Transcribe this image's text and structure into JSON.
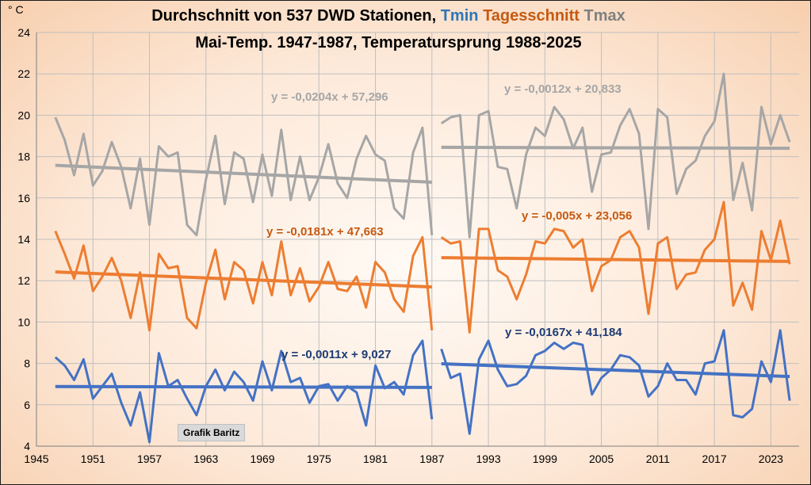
{
  "chart_data": {
    "type": "line",
    "title_parts": [
      {
        "text": "Durchschnitt von 537 DWD Stationen, ",
        "color": "#000000"
      },
      {
        "text": "Tmin ",
        "color": "#2e75b6"
      },
      {
        "text": "Tagesschnitt ",
        "color": "#c55a11"
      },
      {
        "text": "Tmax",
        "color": "#808080"
      }
    ],
    "subtitle": "Mai-Temp. 1947-1987, Temperatursprung 1988-2025",
    "ylabel": "° C",
    "xlim": [
      1945,
      2026
    ],
    "ylim": [
      4,
      24
    ],
    "xticks": [
      1945,
      1951,
      1957,
      1963,
      1969,
      1975,
      1981,
      1987,
      1993,
      1999,
      2005,
      2011,
      2017,
      2023
    ],
    "yticks": [
      4,
      6,
      8,
      10,
      12,
      14,
      16,
      18,
      20,
      22,
      24
    ],
    "grid": true,
    "series": [
      {
        "name": "Tmax",
        "color": "#a6a6a6",
        "segments": [
          {
            "x": [
              1947,
              1948,
              1949,
              1950,
              1951,
              1952,
              1953,
              1954,
              1955,
              1956,
              1957,
              1958,
              1959,
              1960,
              1961,
              1962,
              1963,
              1964,
              1965,
              1966,
              1967,
              1968,
              1969,
              1970,
              1971,
              1972,
              1973,
              1974,
              1975,
              1976,
              1977,
              1978,
              1979,
              1980,
              1981,
              1982,
              1983,
              1984,
              1985,
              1986,
              1987
            ],
            "y": [
              19.9,
              18.8,
              17.1,
              19.1,
              16.6,
              17.3,
              18.7,
              17.5,
              15.5,
              17.9,
              14.7,
              18.5,
              18.0,
              18.2,
              14.7,
              14.2,
              16.9,
              19.0,
              15.7,
              18.2,
              17.9,
              15.8,
              18.1,
              16.1,
              19.3,
              15.9,
              18.0,
              15.9,
              17.0,
              18.6,
              16.7,
              16.0,
              17.9,
              19.0,
              18.1,
              17.8,
              15.5,
              15.0,
              18.2,
              19.4,
              14.2
            ]
          },
          {
            "x": [
              1988,
              1989,
              1990,
              1991,
              1992,
              1993,
              1994,
              1995,
              1996,
              1997,
              1998,
              1999,
              2000,
              2001,
              2002,
              2003,
              2004,
              2005,
              2006,
              2007,
              2008,
              2009,
              2010,
              2011,
              2012,
              2013,
              2014,
              2015,
              2016,
              2017,
              2018,
              2019,
              2020,
              2021,
              2022,
              2023,
              2024,
              2025
            ],
            "y": [
              19.6,
              19.9,
              20.0,
              14.1,
              20.0,
              20.2,
              17.5,
              17.4,
              15.5,
              18.1,
              19.4,
              19.0,
              20.4,
              19.8,
              18.4,
              19.4,
              16.3,
              18.1,
              18.2,
              19.5,
              20.3,
              19.1,
              14.5,
              20.3,
              19.9,
              16.2,
              17.4,
              17.8,
              19.0,
              19.7,
              22.0,
              15.9,
              17.7,
              15.4,
              20.4,
              18.6,
              20.0,
              18.7
            ]
          }
        ],
        "trend": [
          {
            "slope": -0.0204,
            "intercept": 57.296,
            "from": 1947,
            "to": 1987,
            "label": "y = -0,0204x + 57,296"
          },
          {
            "slope": -0.0012,
            "intercept": 20.833,
            "from": 1988,
            "to": 2025,
            "label": "y = -0,0012x + 20,833"
          }
        ]
      },
      {
        "name": "Tagesschnitt",
        "color": "#ed7d31",
        "segments": [
          {
            "x": [
              1947,
              1948,
              1949,
              1950,
              1951,
              1952,
              1953,
              1954,
              1955,
              1956,
              1957,
              1958,
              1959,
              1960,
              1961,
              1962,
              1963,
              1964,
              1965,
              1966,
              1967,
              1968,
              1969,
              1970,
              1971,
              1972,
              1973,
              1974,
              1975,
              1976,
              1977,
              1978,
              1979,
              1980,
              1981,
              1982,
              1983,
              1984,
              1985,
              1986,
              1987
            ],
            "y": [
              14.4,
              13.3,
              12.1,
              13.7,
              11.5,
              12.2,
              13.1,
              12.0,
              10.2,
              12.4,
              9.6,
              13.3,
              12.6,
              12.7,
              10.2,
              9.7,
              11.9,
              13.5,
              11.1,
              12.9,
              12.5,
              10.9,
              12.9,
              11.3,
              13.9,
              11.3,
              12.6,
              11.0,
              11.7,
              12.9,
              11.6,
              11.5,
              12.2,
              10.7,
              12.9,
              12.4,
              11.1,
              10.5,
              13.2,
              14.1,
              9.6
            ]
          },
          {
            "x": [
              1988,
              1989,
              1990,
              1991,
              1992,
              1993,
              1994,
              1995,
              1996,
              1997,
              1998,
              1999,
              2000,
              2001,
              2002,
              2003,
              2004,
              2005,
              2006,
              2007,
              2008,
              2009,
              2010,
              2011,
              2012,
              2013,
              2014,
              2015,
              2016,
              2017,
              2018,
              2019,
              2020,
              2021,
              2022,
              2023,
              2024,
              2025
            ],
            "y": [
              14.1,
              13.8,
              13.9,
              9.5,
              14.5,
              14.5,
              12.5,
              12.2,
              11.1,
              12.3,
              13.9,
              13.8,
              14.5,
              14.4,
              13.6,
              14.0,
              11.5,
              12.7,
              13.0,
              14.1,
              14.4,
              13.6,
              10.4,
              13.8,
              14.1,
              11.6,
              12.3,
              12.4,
              13.5,
              14.0,
              15.8,
              10.8,
              11.9,
              10.6,
              14.4,
              13.0,
              14.9,
              12.8
            ]
          }
        ],
        "trend": [
          {
            "slope": -0.0181,
            "intercept": 47.663,
            "from": 1947,
            "to": 1987,
            "label": "y = -0,0181x + 47,663"
          },
          {
            "slope": -0.005,
            "intercept": 23.056,
            "from": 1988,
            "to": 2025,
            "label": "y = -0,005x + 23,056"
          }
        ]
      },
      {
        "name": "Tmin",
        "color": "#4472c4",
        "segments": [
          {
            "x": [
              1947,
              1948,
              1949,
              1950,
              1951,
              1952,
              1953,
              1954,
              1955,
              1956,
              1957,
              1958,
              1959,
              1960,
              1961,
              1962,
              1963,
              1964,
              1965,
              1966,
              1967,
              1968,
              1969,
              1970,
              1971,
              1972,
              1973,
              1974,
              1975,
              1976,
              1977,
              1978,
              1979,
              1980,
              1981,
              1982,
              1983,
              1984,
              1985,
              1986,
              1987
            ],
            "y": [
              8.3,
              7.9,
              7.2,
              8.2,
              6.3,
              6.9,
              7.5,
              6.1,
              5.0,
              6.6,
              4.2,
              8.5,
              6.9,
              7.2,
              6.3,
              5.5,
              6.9,
              7.7,
              6.7,
              7.6,
              7.1,
              6.2,
              8.1,
              6.7,
              8.6,
              7.1,
              7.3,
              6.1,
              6.9,
              7.0,
              6.2,
              6.9,
              6.6,
              5.0,
              7.9,
              6.8,
              7.1,
              6.5,
              8.4,
              9.1,
              5.3
            ]
          },
          {
            "x": [
              1988,
              1989,
              1990,
              1991,
              1992,
              1993,
              1994,
              1995,
              1996,
              1997,
              1998,
              1999,
              2000,
              2001,
              2002,
              2003,
              2004,
              2005,
              2006,
              2007,
              2008,
              2009,
              2010,
              2011,
              2012,
              2013,
              2014,
              2015,
              2016,
              2017,
              2018,
              2019,
              2020,
              2021,
              2022,
              2023,
              2024,
              2025
            ],
            "y": [
              8.7,
              7.3,
              7.5,
              4.6,
              8.2,
              9.1,
              7.7,
              6.9,
              7.0,
              7.4,
              8.4,
              8.6,
              9.0,
              8.7,
              9.0,
              8.9,
              6.5,
              7.3,
              7.7,
              8.4,
              8.3,
              7.9,
              6.4,
              6.9,
              8.0,
              7.2,
              7.2,
              6.5,
              8.0,
              8.1,
              9.6,
              5.5,
              5.4,
              5.8,
              8.1,
              7.1,
              9.6,
              6.2
            ]
          }
        ],
        "trend": [
          {
            "slope": -0.0011,
            "intercept": 9.027,
            "from": 1947,
            "to": 1987,
            "label": "y = -0,0011x + 9,027"
          },
          {
            "slope": -0.0167,
            "intercept": 41.184,
            "from": 1988,
            "to": 2025,
            "label": "y = -0,0167x + 41,184"
          }
        ]
      }
    ],
    "equation_colors": {
      "Tmax": "#a6a6a6",
      "Tagesschnitt": "#c55a11",
      "Tmin": "#1f3b73"
    }
  },
  "credit": "Grafik Baritz"
}
